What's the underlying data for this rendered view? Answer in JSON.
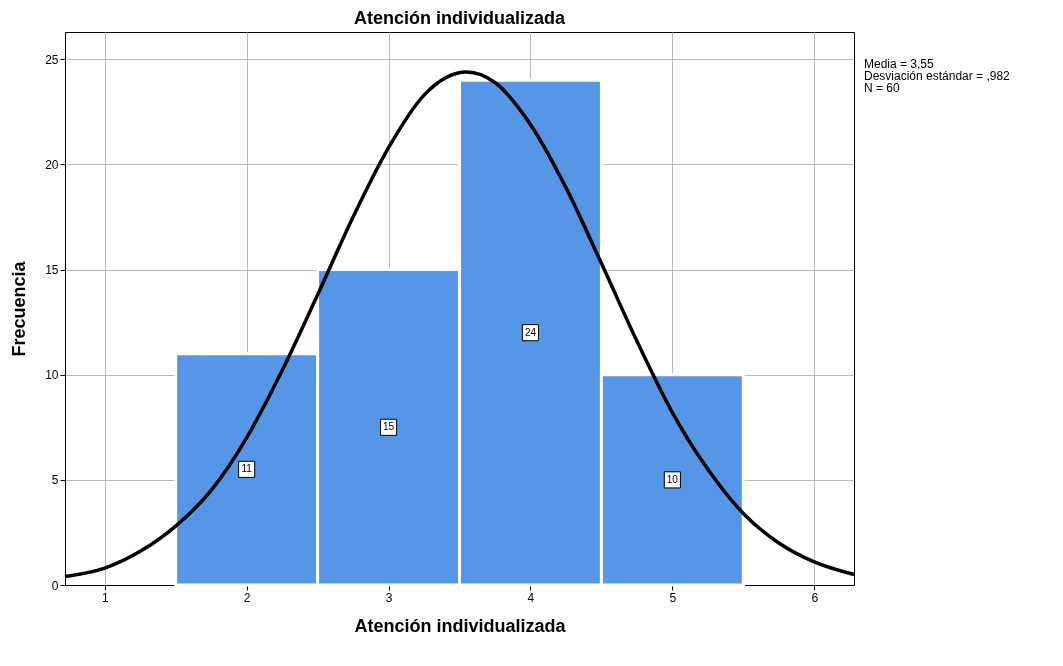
{
  "chart_data": {
    "type": "histogram",
    "title": "Atención individualizada",
    "xlabel": "Atención individualizada",
    "ylabel": "Frecuencia",
    "xlim": [
      0.72,
      6.28
    ],
    "xticks": [
      1,
      2,
      3,
      4,
      5,
      6
    ],
    "ylim": [
      0,
      26.3
    ],
    "yticks": [
      0,
      5,
      10,
      15,
      20,
      25
    ],
    "grid": true,
    "annotations": [
      "Media = 3,55",
      "Desviación estándar = ,982",
      "N = 60"
    ],
    "series": [
      {
        "bins": [
          1.5,
          2.5,
          3.5,
          4.5,
          5.5
        ],
        "values": [
          11,
          15,
          24,
          10
        ],
        "value_labels": [
          "11",
          "15",
          "24",
          "10"
        ],
        "color": "#5596e6"
      },
      {
        "type": "line",
        "color": "#000000",
        "line_style": "solid",
        "marker": "none",
        "x": [
          0.72,
          1.0,
          1.25,
          1.5,
          1.75,
          2.0,
          2.25,
          2.5,
          2.75,
          3.0,
          3.25,
          3.55,
          3.75,
          4.0,
          4.25,
          4.5,
          4.75,
          5.0,
          5.25,
          5.5,
          5.75,
          6.0,
          6.28
        ],
        "values": [
          0.4,
          0.8,
          1.6,
          2.8,
          4.5,
          7.0,
          10.2,
          13.8,
          17.5,
          20.8,
          23.3,
          24.4,
          23.9,
          21.9,
          18.9,
          15.3,
          11.6,
          8.2,
          5.5,
          3.4,
          2.0,
          1.1,
          0.5
        ]
      }
    ]
  }
}
